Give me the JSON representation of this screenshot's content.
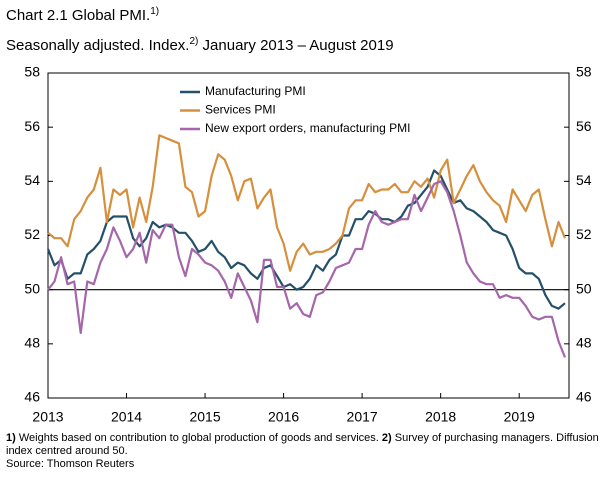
{
  "title": "Chart 2.1 Global PMI.",
  "title_note": "1)",
  "subtitle": "Seasonally adjusted. Index.",
  "subtitle_note": "2)",
  "subtitle_period": "January 2013 – August 2019",
  "footnotes": [
    {
      "marker": "1)",
      "text": "Weights based on contribution to global production of goods and services."
    },
    {
      "marker": "2)",
      "text": "Survey of purchasing managers. Diffusion index centred around 50."
    }
  ],
  "source": "Source: Thomson Reuters",
  "chart_data": {
    "type": "line",
    "x": [
      "2013-01",
      "2013-02",
      "2013-03",
      "2013-04",
      "2013-05",
      "2013-06",
      "2013-07",
      "2013-08",
      "2013-09",
      "2013-10",
      "2013-11",
      "2013-12",
      "2014-01",
      "2014-02",
      "2014-03",
      "2014-04",
      "2014-05",
      "2014-06",
      "2014-07",
      "2014-08",
      "2014-09",
      "2014-10",
      "2014-11",
      "2014-12",
      "2015-01",
      "2015-02",
      "2015-03",
      "2015-04",
      "2015-05",
      "2015-06",
      "2015-07",
      "2015-08",
      "2015-09",
      "2015-10",
      "2015-11",
      "2015-12",
      "2016-01",
      "2016-02",
      "2016-03",
      "2016-04",
      "2016-05",
      "2016-06",
      "2016-07",
      "2016-08",
      "2016-09",
      "2016-10",
      "2016-11",
      "2016-12",
      "2017-01",
      "2017-02",
      "2017-03",
      "2017-04",
      "2017-05",
      "2017-06",
      "2017-07",
      "2017-08",
      "2017-09",
      "2017-10",
      "2017-11",
      "2017-12",
      "2018-01",
      "2018-02",
      "2018-03",
      "2018-04",
      "2018-05",
      "2018-06",
      "2018-07",
      "2018-08",
      "2018-09",
      "2018-10",
      "2018-11",
      "2018-12",
      "2019-01",
      "2019-02",
      "2019-03",
      "2019-04",
      "2019-05",
      "2019-06",
      "2019-07",
      "2019-08"
    ],
    "series": [
      {
        "name": "Manufacturing PMI",
        "color": "#24506b",
        "values": [
          51.5,
          50.9,
          51.1,
          50.4,
          50.6,
          50.6,
          51.3,
          51.5,
          51.8,
          52.5,
          52.7,
          52.7,
          52.7,
          51.9,
          51.6,
          51.9,
          52.5,
          52.3,
          52.4,
          52.3,
          52.1,
          52.1,
          51.8,
          51.4,
          51.5,
          51.8,
          51.4,
          51.2,
          50.8,
          51.0,
          50.9,
          50.6,
          50.4,
          50.8,
          50.9,
          50.5,
          50.1,
          50.2,
          50.0,
          50.1,
          50.4,
          50.9,
          50.7,
          51.1,
          51.3,
          52.0,
          52.0,
          52.6,
          52.6,
          52.9,
          52.8,
          52.6,
          52.6,
          52.5,
          52.7,
          53.1,
          53.2,
          53.5,
          53.8,
          54.4,
          54.2,
          53.7,
          53.2,
          53.3,
          53.0,
          52.9,
          52.7,
          52.5,
          52.2,
          52.1,
          52.0,
          51.5,
          50.8,
          50.6,
          50.6,
          50.4,
          49.8,
          49.4,
          49.3,
          49.5
        ]
      },
      {
        "name": "Services PMI",
        "color": "#d68f3c",
        "values": [
          52.1,
          51.9,
          51.9,
          51.6,
          52.6,
          52.9,
          53.4,
          53.7,
          54.5,
          52.5,
          53.7,
          53.5,
          53.7,
          52.3,
          53.4,
          52.5,
          53.8,
          55.7,
          55.6,
          55.5,
          55.4,
          53.8,
          53.6,
          52.7,
          52.9,
          54.2,
          55.0,
          54.8,
          54.2,
          53.3,
          54.0,
          54.1,
          53.0,
          53.4,
          53.7,
          52.3,
          51.7,
          50.7,
          51.4,
          51.7,
          51.3,
          51.4,
          51.4,
          51.5,
          51.7,
          52.0,
          53.0,
          53.3,
          53.3,
          53.9,
          53.6,
          53.7,
          53.7,
          53.9,
          53.6,
          53.6,
          54.0,
          53.8,
          54.1,
          53.4,
          54.4,
          54.8,
          53.2,
          53.7,
          54.2,
          54.6,
          54.0,
          53.6,
          53.3,
          53.1,
          52.5,
          53.7,
          53.3,
          52.9,
          53.5,
          53.7,
          52.6,
          51.6,
          52.5,
          51.9
        ]
      },
      {
        "name": "New export orders, manufacturing PMI",
        "color": "#a566aa",
        "values": [
          50.0,
          50.3,
          51.2,
          50.2,
          50.3,
          48.4,
          50.3,
          50.2,
          51.0,
          51.5,
          52.3,
          51.8,
          51.2,
          51.5,
          52.1,
          51.0,
          52.2,
          51.9,
          52.4,
          52.4,
          51.2,
          50.5,
          51.5,
          51.3,
          51.0,
          50.9,
          50.7,
          50.3,
          49.7,
          50.6,
          50.1,
          49.6,
          48.8,
          51.1,
          51.1,
          50.1,
          50.1,
          49.3,
          49.5,
          49.1,
          49.0,
          49.8,
          49.9,
          50.3,
          50.8,
          50.9,
          51.0,
          51.5,
          51.5,
          52.4,
          52.9,
          52.5,
          52.4,
          52.5,
          52.6,
          52.6,
          53.5,
          52.9,
          53.4,
          53.9,
          54.0,
          53.6,
          52.9,
          52.0,
          51.0,
          50.6,
          50.3,
          50.2,
          50.2,
          49.7,
          49.8,
          49.7,
          49.7,
          49.4,
          49.0,
          48.9,
          49.0,
          49.0,
          48.1,
          47.5
        ]
      }
    ],
    "xlim": [
      "2013-01",
      "2019-08"
    ],
    "xticks": [
      {
        "value": "2013-01",
        "label": "2013"
      },
      {
        "value": "2014-01",
        "label": "2014"
      },
      {
        "value": "2015-01",
        "label": "2015"
      },
      {
        "value": "2016-01",
        "label": "2016"
      },
      {
        "value": "2017-01",
        "label": "2017"
      },
      {
        "value": "2018-01",
        "label": "2018"
      },
      {
        "value": "2019-01",
        "label": "2019"
      }
    ],
    "ylim": [
      46,
      58
    ],
    "yticks": [
      46,
      48,
      50,
      52,
      54,
      56,
      58
    ],
    "reference_line": 50,
    "grid": false,
    "legend": "top"
  }
}
